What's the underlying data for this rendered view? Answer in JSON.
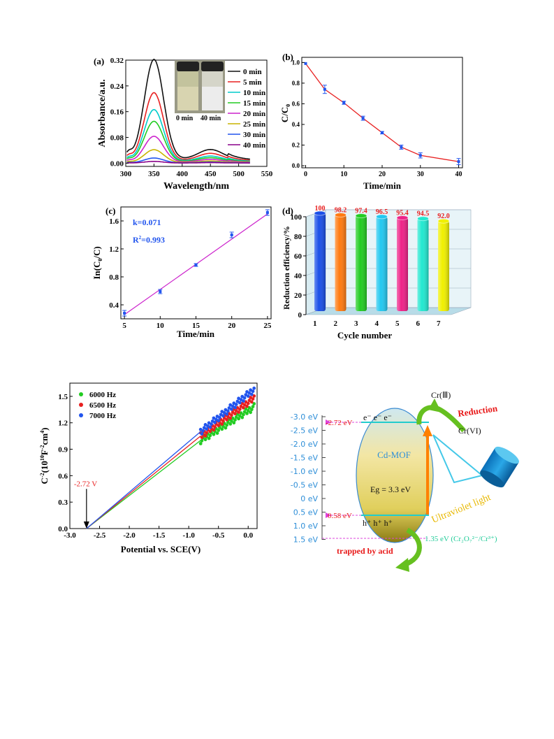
{
  "colors": {
    "green": "#22cc22",
    "red": "#e82020",
    "blue": "#2255ee",
    "magenta": "#cc22cc",
    "cyan_line": "#22cccc",
    "pink_dash": "#dd44dd",
    "orange": "#ff8000",
    "scale_blue": "#2f8fd8",
    "label_red": "#e81818"
  },
  "chart_data": [
    {
      "panel": "(a)",
      "type": "line",
      "xlabel": "Wavelength/nm",
      "ylabel": "Absorbance/a.u.",
      "xlim": [
        300,
        550
      ],
      "ylim": [
        -0.01,
        0.32
      ],
      "xticks": [
        300,
        350,
        400,
        450,
        500,
        550
      ],
      "yticks": [
        0.0,
        0.08,
        0.16,
        0.24,
        0.32
      ],
      "ytick_labels": [
        "0.00",
        "0.08",
        "0.16",
        "0.24",
        "0.32"
      ],
      "legend_position": "right",
      "inset_labels": [
        "0 min",
        "40 min"
      ],
      "series": [
        {
          "name": "0 min",
          "color": "#111111",
          "peak": 0.31,
          "tail": 0.025
        },
        {
          "name": "5 min",
          "color": "#e82020",
          "peak": 0.21,
          "tail": 0.018
        },
        {
          "name": "10 min",
          "color": "#00cccc",
          "peak": 0.16,
          "tail": 0.013
        },
        {
          "name": "15 min",
          "color": "#22cc22",
          "peak": 0.125,
          "tail": 0.01
        },
        {
          "name": "20 min",
          "color": "#cc22cc",
          "peak": 0.08,
          "tail": 0.007
        },
        {
          "name": "25 min",
          "color": "#c8b400",
          "peak": 0.04,
          "tail": 0.004
        },
        {
          "name": "30 min",
          "color": "#2255ee",
          "peak": 0.015,
          "tail": 0.002
        },
        {
          "name": "40 min",
          "color": "#880088",
          "peak": 0.005,
          "tail": 0.001
        }
      ]
    },
    {
      "panel": "(b)",
      "type": "line",
      "xlabel": "Time/min",
      "ylabel": "C/C",
      "ylabel_sub": "0",
      "xlim": [
        -1,
        41
      ],
      "ylim": [
        -0.02,
        1.05
      ],
      "xticks": [
        0,
        10,
        20,
        30,
        40
      ],
      "yticks": [
        0.0,
        0.2,
        0.4,
        0.6,
        0.8,
        1.0
      ],
      "ytick_labels": [
        "0.0",
        "0.2",
        "0.4",
        "0.6",
        "0.8",
        "1.0"
      ],
      "x": [
        0,
        5,
        10,
        15,
        20,
        25,
        30,
        40
      ],
      "y": [
        0.99,
        0.74,
        0.61,
        0.46,
        0.32,
        0.18,
        0.1,
        0.04
      ],
      "err": [
        0.0,
        0.04,
        0.015,
        0.02,
        0.012,
        0.02,
        0.025,
        0.03
      ]
    },
    {
      "panel": "(c)",
      "type": "scatter",
      "xlabel": "Time/min",
      "ylabel": "In(C",
      "ylabel_sub": "0",
      "ylabel_rest": "/C)",
      "xlim": [
        4.5,
        25.5
      ],
      "ylim": [
        0.2,
        1.8
      ],
      "xticks": [
        5,
        10,
        15,
        20,
        25
      ],
      "yticks": [
        0.4,
        0.8,
        1.2,
        1.6
      ],
      "ytick_labels": [
        "0.4",
        "0.8",
        "1.2",
        "1.6"
      ],
      "x": [
        5,
        10,
        15,
        20,
        25
      ],
      "y": [
        0.28,
        0.59,
        0.97,
        1.4,
        1.72
      ],
      "err": [
        0.04,
        0.03,
        0.02,
        0.04,
        0.04
      ],
      "fit": {
        "x": [
          5,
          25
        ],
        "y": [
          0.26,
          1.7
        ]
      },
      "k_label": "k=0.071",
      "r2_label": "R",
      "r2_sup": "2",
      "r2_value": "=0.993"
    },
    {
      "panel": "(d)",
      "type": "bar",
      "xlabel": "Cycle number",
      "ylabel": "Reduction efficiency/%",
      "ylim": [
        0,
        100
      ],
      "yticks": [
        0,
        20,
        40,
        60,
        80,
        100
      ],
      "ytick_labels": [
        "0",
        "20",
        "40",
        "60",
        "80",
        "100"
      ],
      "categories": [
        "1",
        "2",
        "3",
        "4",
        "5",
        "6",
        "7"
      ],
      "values": [
        100,
        98.2,
        97.4,
        96.5,
        95.4,
        94.5,
        92.0
      ],
      "value_labels": [
        "100",
        "98.2",
        "97.4",
        "96.5",
        "95.4",
        "94.5",
        "92.0"
      ],
      "bar_colors": [
        "#1a4fe8",
        "#ff7a10",
        "#22cc22",
        "#22c8f0",
        "#ee2288",
        "#22e8d0",
        "#f0f000"
      ]
    },
    {
      "panel": "Mott-Schottky",
      "type": "scatter",
      "xlabel": "Potential vs. SCE(V)",
      "ylabel": "C",
      "ylabel_sup1": "-2",
      "ylabel_mid": "(10",
      "ylabel_sup2": "10",
      "ylabel_mid2": "F",
      "ylabel_sup3": "-2",
      "ylabel_mid3": "cm",
      "ylabel_sup4": "4",
      "ylabel_end": ")",
      "xlim": [
        -3.0,
        0.15
      ],
      "ylim": [
        0.0,
        1.65
      ],
      "xticks": [
        -3.0,
        -2.5,
        -2.0,
        -1.5,
        -1.0,
        -0.5,
        0.0
      ],
      "xtick_labels": [
        "-3.0",
        "-2.5",
        "-2.0",
        "-1.5",
        "-1.0",
        "-0.5",
        "0.0"
      ],
      "yticks": [
        0.0,
        0.3,
        0.6,
        0.9,
        1.2,
        1.5
      ],
      "ytick_labels": [
        "0.0",
        "0.3",
        "0.6",
        "0.9",
        "1.2",
        "1.5"
      ],
      "annotation": "-2.72 V",
      "intercept": -2.72,
      "series": [
        {
          "name": "6000 Hz",
          "color": "#22cc22",
          "x_start": -0.8,
          "x_end": 0.1,
          "y_start": 1.0,
          "y_end": 1.38
        },
        {
          "name": "6500 Hz",
          "color": "#e82020",
          "x_start": -0.8,
          "x_end": 0.1,
          "y_start": 1.05,
          "y_end": 1.48
        },
        {
          "name": "7000 Hz",
          "color": "#2255ee",
          "x_start": -0.8,
          "x_end": 0.1,
          "y_start": 1.1,
          "y_end": 1.58
        }
      ]
    }
  ],
  "diagram": {
    "scale_labels": [
      "-3.0 eV",
      "-2.5 eV",
      "-2.0 eV",
      "-1.5 eV",
      "-1.0 eV",
      "-0.5 eV",
      "0 eV",
      "0.5 eV",
      "1.0 eV",
      "1.5 eV"
    ],
    "cb_label": "-2.72 eV",
    "vb_label": "0.58 eV",
    "electrons": "e⁻  e⁻  e⁻",
    "holes": "h⁺ h⁺ h⁺",
    "material": "Cd-MOF",
    "bandgap": "Eg = 3.3 eV",
    "cr3": "Cr(Ⅲ)",
    "cr6": "Cr(VI)",
    "reduction": "Reduction",
    "light": "Ultraviolet light",
    "redox": "1.35 eV (Cr₂O₇²⁻/Cr³⁺)",
    "trapped": "trapped by acid"
  }
}
